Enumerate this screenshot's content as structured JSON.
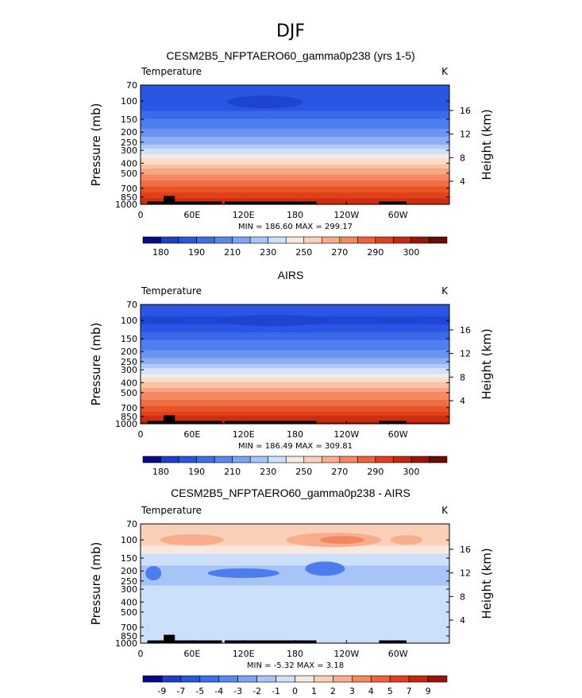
{
  "page_title": "DJF",
  "chart_data": [
    {
      "type": "heatmap",
      "title": "CESM2B5_NFPTAERO60_gamma0p238 (yrs 1-5)",
      "variable_label": "Temperature",
      "units": "K",
      "ylabel": "Pressure (mb)",
      "y2label": "Height (km)",
      "xticks": [
        "0",
        "60E",
        "120E",
        "180",
        "120W",
        "60W"
      ],
      "xtick_lon": [
        0,
        60,
        120,
        180,
        240,
        300
      ],
      "xlim": [
        0,
        360
      ],
      "yticks": [
        "70",
        "100",
        "150",
        "200",
        "250",
        "300",
        "400",
        "500",
        "700",
        "850",
        "1000"
      ],
      "ytick_p": [
        70,
        100,
        150,
        200,
        250,
        300,
        400,
        500,
        700,
        850,
        1000
      ],
      "ylim": [
        70,
        1000
      ],
      "height_ticks": [
        "16",
        "12",
        "8",
        "4"
      ],
      "height_km": [
        16,
        12,
        8,
        4
      ],
      "stats": "MIN = 186.60   MAX = 299.17",
      "min": 186.6,
      "max": 299.17,
      "colorbar_ticks": [
        "180",
        "190",
        "210",
        "230",
        "250",
        "270",
        "290",
        "300"
      ],
      "colorbar_colors": [
        "#08088a",
        "#1d3fc7",
        "#2857e0",
        "#3d6fe8",
        "#5a88ef",
        "#7ea4f4",
        "#a6c4f8",
        "#cde0fb",
        "#f7e9df",
        "#fad1b8",
        "#f8ad8c",
        "#f4875e",
        "#ee6236",
        "#e33e1f",
        "#c32811",
        "#991608",
        "#6a0a05"
      ],
      "profile_p": [
        70,
        100,
        150,
        200,
        250,
        300,
        400,
        500,
        700,
        850,
        1000
      ],
      "profile_T": [
        204,
        198,
        210,
        218,
        226,
        235,
        251,
        263,
        278,
        287,
        293
      ],
      "topography": "black"
    },
    {
      "type": "heatmap",
      "title": "AIRS",
      "variable_label": "Temperature",
      "units": "K",
      "ylabel": "Pressure (mb)",
      "y2label": "Height (km)",
      "xticks": [
        "0",
        "60E",
        "120E",
        "180",
        "120W",
        "60W"
      ],
      "xtick_lon": [
        0,
        60,
        120,
        180,
        240,
        300
      ],
      "xlim": [
        0,
        360
      ],
      "yticks": [
        "70",
        "100",
        "150",
        "200",
        "250",
        "300",
        "400",
        "500",
        "700",
        "850",
        "1000"
      ],
      "ytick_p": [
        70,
        100,
        150,
        200,
        250,
        300,
        400,
        500,
        700,
        850,
        1000
      ],
      "ylim": [
        70,
        1000
      ],
      "height_ticks": [
        "16",
        "12",
        "8",
        "4"
      ],
      "height_km": [
        16,
        12,
        8,
        4
      ],
      "stats": "MIN = 186.49   MAX = 309.81",
      "min": 186.49,
      "max": 309.81,
      "colorbar_ticks": [
        "180",
        "190",
        "210",
        "230",
        "250",
        "270",
        "290",
        "300"
      ],
      "colorbar_colors": [
        "#08088a",
        "#1d3fc7",
        "#2857e0",
        "#3d6fe8",
        "#5a88ef",
        "#7ea4f4",
        "#a6c4f8",
        "#cde0fb",
        "#f7e9df",
        "#fad1b8",
        "#f8ad8c",
        "#f4875e",
        "#ee6236",
        "#e33e1f",
        "#c32811",
        "#991608",
        "#6a0a05"
      ],
      "profile_p": [
        70,
        100,
        150,
        200,
        250,
        300,
        400,
        500,
        700,
        850,
        1000
      ],
      "profile_T": [
        204,
        196,
        209,
        217,
        226,
        235,
        252,
        264,
        279,
        288,
        296
      ],
      "topography": "black"
    },
    {
      "type": "heatmap",
      "title": "CESM2B5_NFPTAERO60_gamma0p238 - AIRS",
      "variable_label": "Temperature",
      "units": "K",
      "ylabel": "Pressure (mb)",
      "y2label": "Height (km)",
      "xticks": [
        "0",
        "60E",
        "120E",
        "180",
        "120W",
        "60W"
      ],
      "xtick_lon": [
        0,
        60,
        120,
        180,
        240,
        300
      ],
      "xlim": [
        0,
        360
      ],
      "yticks": [
        "70",
        "100",
        "150",
        "200",
        "250",
        "300",
        "400",
        "500",
        "700",
        "850",
        "1000"
      ],
      "ytick_p": [
        70,
        100,
        150,
        200,
        250,
        300,
        400,
        500,
        700,
        850,
        1000
      ],
      "ylim": [
        70,
        1000
      ],
      "height_ticks": [
        "16",
        "12",
        "8",
        "4"
      ],
      "height_km": [
        16,
        12,
        8,
        4
      ],
      "stats": "MIN =   -5.32   MAX =     3.18",
      "min": -5.32,
      "max": 3.18,
      "colorbar_ticks": [
        "-9",
        "-7",
        "-5",
        "-4",
        "-3",
        "-2",
        "-1",
        "0",
        "1",
        "2",
        "3",
        "4",
        "5",
        "7",
        "9"
      ],
      "colorbar_colors": [
        "#08088a",
        "#1d3fc7",
        "#2857e0",
        "#3d6fe8",
        "#5a88ef",
        "#7ea4f4",
        "#a6c4f8",
        "#cde0fb",
        "#f7e9df",
        "#fad1b8",
        "#f8ad8c",
        "#f4875e",
        "#ee6236",
        "#e33e1f",
        "#c32811",
        "#991608"
      ],
      "diff_profile_p": [
        70,
        100,
        150,
        200,
        300,
        400,
        500,
        700,
        850,
        1000
      ],
      "diff_profile": [
        1.2,
        1.6,
        -0.6,
        -1.3,
        -0.9,
        -0.6,
        -0.7,
        -0.8,
        -0.6,
        -0.2
      ],
      "topography": "black"
    }
  ]
}
